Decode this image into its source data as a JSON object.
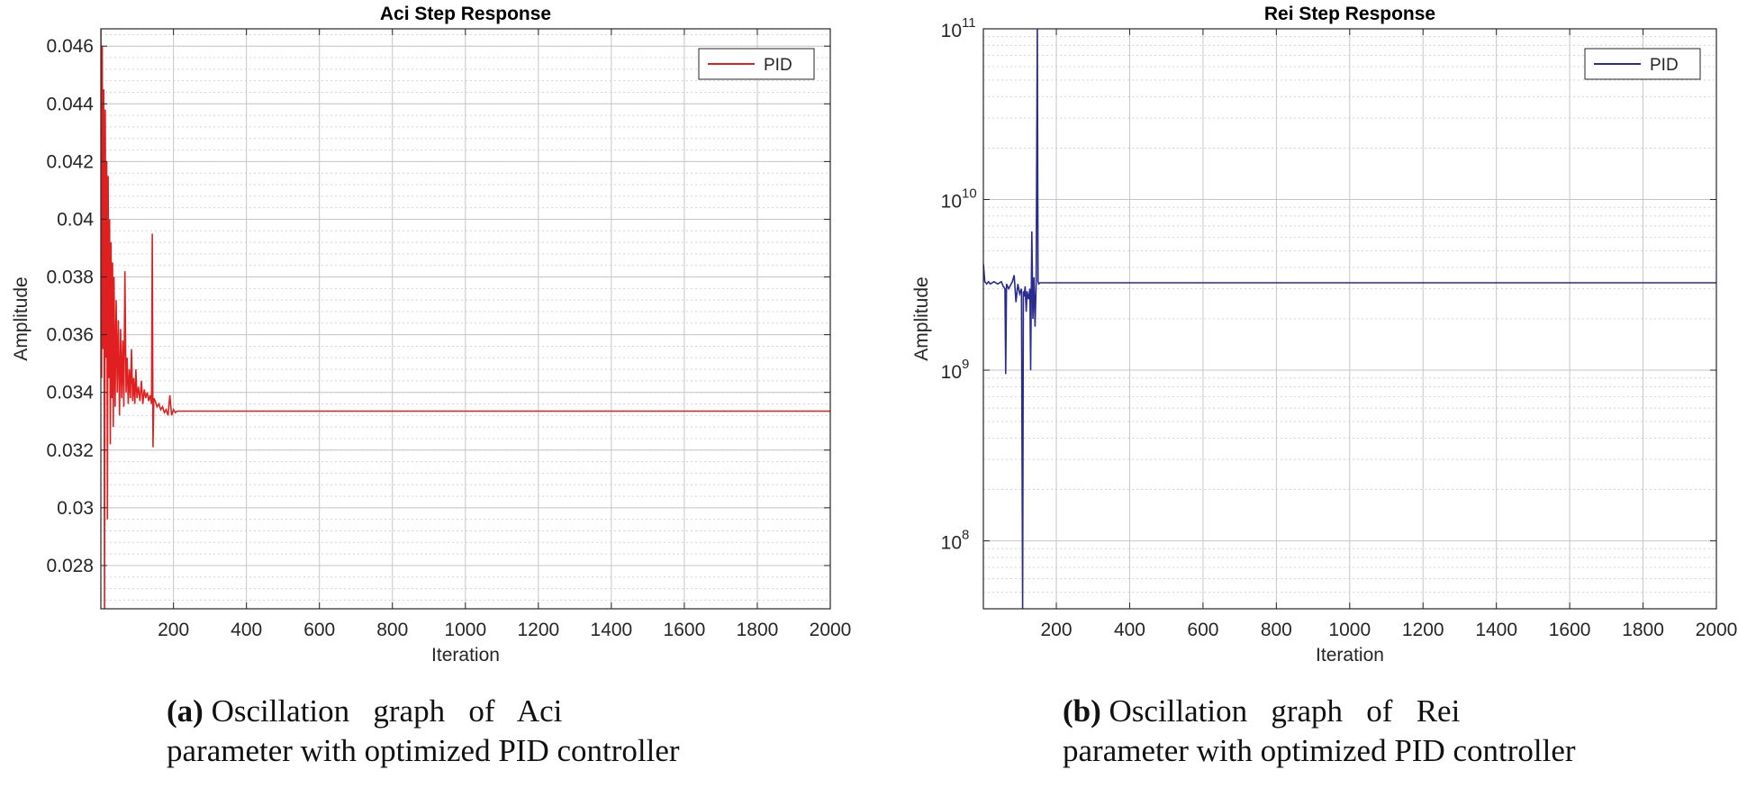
{
  "chart_data": [
    {
      "type": "line",
      "title": "Aci Step Response",
      "xlabel": "Iteration",
      "ylabel": "Amplitude",
      "xlim": [
        1,
        2000
      ],
      "ylim": [
        0.0265,
        0.0466
      ],
      "y_scale": "linear",
      "xticks": [
        200,
        400,
        600,
        800,
        1000,
        1200,
        1400,
        1600,
        1800,
        2000
      ],
      "xtick_labels": [
        "200",
        "400",
        "600",
        "800",
        "1000",
        "1200",
        "1400",
        "1600",
        "1800",
        "2000"
      ],
      "yticks": [
        0.028,
        0.03,
        0.032,
        0.034,
        0.036,
        0.038,
        0.04,
        0.042,
        0.044,
        0.046
      ],
      "ytick_labels": [
        "0.028",
        "0.03",
        "0.032",
        "0.034",
        "0.036",
        "0.038",
        "0.04",
        "0.042",
        "0.044",
        "0.046"
      ],
      "grid": true,
      "legend_position": "top-right",
      "series": [
        {
          "name": "PID",
          "color": "#e02020",
          "x": [
            1,
            3,
            5,
            7,
            9,
            11,
            13,
            15,
            17,
            19,
            21,
            23,
            25,
            27,
            29,
            31,
            33,
            35,
            37,
            40,
            43,
            46,
            49,
            52,
            55,
            58,
            61,
            64,
            67,
            70,
            73,
            76,
            79,
            82,
            85,
            88,
            91,
            94,
            97,
            100,
            104,
            108,
            112,
            116,
            120,
            124,
            128,
            132,
            136,
            140,
            142,
            144,
            146,
            150,
            155,
            160,
            165,
            170,
            175,
            180,
            185,
            190,
            195,
            200,
            205,
            210,
            220,
            2000
          ],
          "y": [
            0.0466,
            0.0345,
            0.046,
            0.0355,
            0.0445,
            0.0265,
            0.0438,
            0.0352,
            0.042,
            0.0296,
            0.0415,
            0.0345,
            0.04,
            0.0322,
            0.0392,
            0.0338,
            0.0385,
            0.0328,
            0.038,
            0.0335,
            0.0372,
            0.034,
            0.0365,
            0.0332,
            0.0362,
            0.0338,
            0.0358,
            0.0335,
            0.0382,
            0.034,
            0.0352,
            0.0336,
            0.0348,
            0.0338,
            0.0355,
            0.0337,
            0.0345,
            0.0336,
            0.0348,
            0.0338,
            0.0342,
            0.0337,
            0.0344,
            0.0336,
            0.0341,
            0.0338,
            0.034,
            0.0337,
            0.0339,
            0.0336,
            0.0395,
            0.0321,
            0.0338,
            0.0337,
            0.0335,
            0.0336,
            0.0334,
            0.0335,
            0.0333,
            0.0334,
            0.0332,
            0.0339,
            0.0332,
            0.0334,
            0.0333,
            0.03335,
            0.03335,
            0.03335
          ]
        }
      ]
    },
    {
      "type": "line",
      "title": "Rei Step Response",
      "xlabel": "Iteration",
      "ylabel": "Amplitude",
      "xlim": [
        1,
        2000
      ],
      "ylim": [
        40000000,
        100000000000
      ],
      "y_scale": "log",
      "xticks": [
        200,
        400,
        600,
        800,
        1000,
        1200,
        1400,
        1600,
        1800,
        2000
      ],
      "xtick_labels": [
        "200",
        "400",
        "600",
        "800",
        "1000",
        "1200",
        "1400",
        "1600",
        "1800",
        "2000"
      ],
      "yticks": [
        100000000,
        1000000000,
        10000000000,
        100000000000
      ],
      "ytick_labels": [
        {
          "base": "10",
          "exp": "8"
        },
        {
          "base": "10",
          "exp": "9"
        },
        {
          "base": "10",
          "exp": "10"
        },
        {
          "base": "10",
          "exp": "11"
        }
      ],
      "grid": true,
      "legend_position": "top-right",
      "series": [
        {
          "name": "PID",
          "color": "#2a2a90",
          "x": [
            1,
            5,
            10,
            15,
            20,
            30,
            40,
            50,
            55,
            60,
            62,
            64,
            70,
            80,
            85,
            90,
            95,
            100,
            105,
            108,
            110,
            112,
            115,
            118,
            120,
            124,
            128,
            130,
            133,
            136,
            139,
            142,
            145,
            148,
            150,
            152,
            155,
            160,
            2000
          ],
          "y": [
            4200000000,
            3300000000,
            3200000000,
            3300000000,
            3200000000,
            3300000000,
            3200000000,
            3300000000,
            3100000000,
            3000000000,
            950000000,
            3200000000,
            3000000000,
            3300000000,
            3600000000,
            2500000000,
            3200000000,
            2800000000,
            3000000000,
            40000000,
            2900000000,
            2700000000,
            3100000000,
            2200000000,
            2900000000,
            2600000000,
            3000000000,
            1000000000,
            6500000000,
            2000000000,
            3500000000,
            1800000000,
            3200000000,
            100000000000,
            3300000000,
            3200000000,
            3250000000,
            3250000000,
            3250000000
          ]
        }
      ]
    }
  ],
  "captions": [
    {
      "label": "(a)",
      "line1": "Oscillation   graph   of   Aci",
      "line2": "parameter with optimized PID controller"
    },
    {
      "label": "(b)",
      "line1": "Oscillation   graph   of   Rei",
      "line2": "parameter with optimized PID controller"
    }
  ]
}
